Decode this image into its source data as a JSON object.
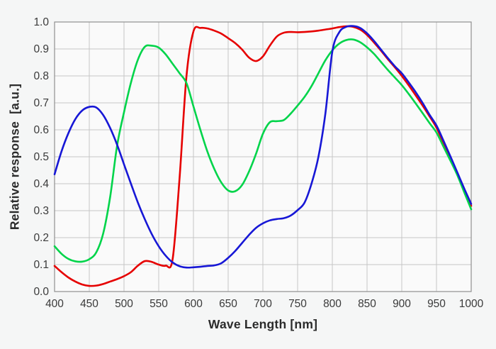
{
  "chart_data": {
    "type": "line",
    "title": "",
    "xlabel": "Wave Length [nm]",
    "ylabel": "Relative response  [a.u.]",
    "xlim": [
      400,
      1000
    ],
    "ylim": [
      0.0,
      1.0
    ],
    "grid": true,
    "legend": "none",
    "x_ticks": [
      "400",
      "450",
      "500",
      "550",
      "600",
      "650",
      "700",
      "750",
      "800",
      "850",
      "900",
      "950",
      "1000"
    ],
    "y_ticks": [
      "0.0",
      "0.1",
      "0.2",
      "0.3",
      "0.4",
      "0.5",
      "0.6",
      "0.7",
      "0.8",
      "0.9",
      "1.0"
    ],
    "x": [
      400,
      410,
      420,
      430,
      440,
      450,
      460,
      470,
      480,
      490,
      500,
      510,
      520,
      530,
      540,
      550,
      560,
      570,
      580,
      590,
      600,
      610,
      620,
      630,
      640,
      650,
      660,
      670,
      680,
      690,
      700,
      710,
      720,
      730,
      740,
      750,
      760,
      770,
      780,
      790,
      800,
      810,
      820,
      830,
      840,
      850,
      860,
      870,
      880,
      890,
      900,
      910,
      920,
      930,
      940,
      950,
      960,
      970,
      980,
      990,
      1000
    ],
    "series": [
      {
        "name": "red-channel",
        "color": "#e60000",
        "values": [
          0.095,
          0.072,
          0.052,
          0.037,
          0.026,
          0.021,
          0.022,
          0.028,
          0.037,
          0.046,
          0.057,
          0.072,
          0.096,
          0.113,
          0.11,
          0.1,
          0.096,
          0.12,
          0.42,
          0.8,
          0.965,
          0.978,
          0.976,
          0.968,
          0.957,
          0.94,
          0.922,
          0.898,
          0.868,
          0.855,
          0.872,
          0.912,
          0.946,
          0.96,
          0.963,
          0.962,
          0.963,
          0.965,
          0.968,
          0.972,
          0.976,
          0.981,
          0.984,
          0.982,
          0.972,
          0.952,
          0.924,
          0.894,
          0.862,
          0.832,
          0.8,
          0.765,
          0.728,
          0.69,
          0.65,
          0.608,
          0.552,
          0.494,
          0.435,
          0.376,
          0.318
        ]
      },
      {
        "name": "green-channel",
        "color": "#00d44a",
        "values": [
          0.168,
          0.14,
          0.121,
          0.112,
          0.111,
          0.12,
          0.145,
          0.215,
          0.35,
          0.54,
          0.665,
          0.775,
          0.86,
          0.908,
          0.912,
          0.905,
          0.88,
          0.845,
          0.81,
          0.773,
          0.687,
          0.6,
          0.52,
          0.455,
          0.405,
          0.375,
          0.372,
          0.395,
          0.445,
          0.51,
          0.585,
          0.628,
          0.632,
          0.636,
          0.66,
          0.69,
          0.722,
          0.762,
          0.81,
          0.858,
          0.895,
          0.92,
          0.933,
          0.935,
          0.925,
          0.906,
          0.882,
          0.852,
          0.822,
          0.794,
          0.766,
          0.733,
          0.698,
          0.662,
          0.625,
          0.59,
          0.538,
          0.486,
          0.432,
          0.368,
          0.305
        ]
      },
      {
        "name": "blue-channel",
        "color": "#1717d6",
        "values": [
          0.435,
          0.52,
          0.588,
          0.64,
          0.672,
          0.685,
          0.683,
          0.655,
          0.607,
          0.545,
          0.472,
          0.4,
          0.33,
          0.268,
          0.213,
          0.168,
          0.133,
          0.108,
          0.094,
          0.089,
          0.09,
          0.092,
          0.095,
          0.097,
          0.105,
          0.125,
          0.15,
          0.18,
          0.21,
          0.236,
          0.253,
          0.264,
          0.269,
          0.272,
          0.282,
          0.302,
          0.33,
          0.4,
          0.5,
          0.66,
          0.89,
          0.962,
          0.982,
          0.985,
          0.978,
          0.958,
          0.93,
          0.898,
          0.866,
          0.836,
          0.81,
          0.776,
          0.74,
          0.7,
          0.656,
          0.616,
          0.56,
          0.502,
          0.442,
          0.382,
          0.325
        ]
      }
    ],
    "style": {
      "outer_background": "#f5f6f6",
      "plot_background": "#fafafa",
      "grid_color": "#c6c6c6",
      "border_color": "#8f8f8f",
      "tick_label_color": "#3a3a3a",
      "line_width": 2.6
    }
  }
}
